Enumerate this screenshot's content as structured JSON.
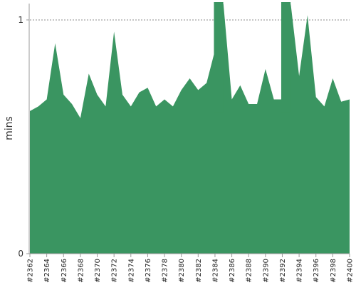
{
  "chart_data": {
    "type": "area",
    "ylabel": "mins",
    "ylim": [
      0,
      1.07
    ],
    "y_ticks": [
      0,
      1
    ],
    "y_tick_labels": [
      "0",
      "1"
    ],
    "reference_line": 1,
    "color": "#3a9561",
    "x": [
      "#2362",
      "#2363",
      "#2364",
      "#2365",
      "#2366",
      "#2367",
      "#2368",
      "#2369",
      "#2370",
      "#2371",
      "#2372",
      "#2373",
      "#2374",
      "#2375",
      "#2376",
      "#2377",
      "#2378",
      "#2379",
      "#2380",
      "#2381",
      "#2382",
      "#2383",
      "#2384",
      "#2385",
      "#2386",
      "#2387",
      "#2388",
      "#2389",
      "#2390",
      "#2391",
      "#2392",
      "#2393",
      "#2394",
      "#2395",
      "#2396",
      "#2397",
      "#2398",
      "#2399",
      "#2400"
    ],
    "x_tick_labels": [
      "#2362",
      "#2364",
      "#2366",
      "#2368",
      "#2370",
      "#2372",
      "#2374",
      "#2376",
      "#2378",
      "#2380",
      "#2382",
      "#2384",
      "#2386",
      "#2388",
      "#2390",
      "#2392",
      "#2394",
      "#2396",
      "#2398",
      "#2400"
    ],
    "values": [
      0.61,
      0.63,
      0.66,
      0.9,
      0.68,
      0.64,
      0.58,
      0.77,
      0.68,
      0.63,
      0.95,
      0.68,
      0.63,
      0.69,
      0.71,
      0.63,
      0.66,
      0.63,
      0.7,
      0.75,
      0.7,
      0.73,
      0.87,
      1.07,
      0.66,
      0.72,
      0.64,
      0.64,
      0.79,
      0.66,
      0.66,
      1.07,
      0.76,
      1.02,
      0.67,
      0.63,
      0.75,
      0.65,
      0.66
    ],
    "clipped_points": [
      {
        "x": "#2384",
        "y": 1.07,
        "width_x": 2
      },
      {
        "x": "#2392",
        "y": 1.07,
        "width_x": 2
      }
    ]
  }
}
